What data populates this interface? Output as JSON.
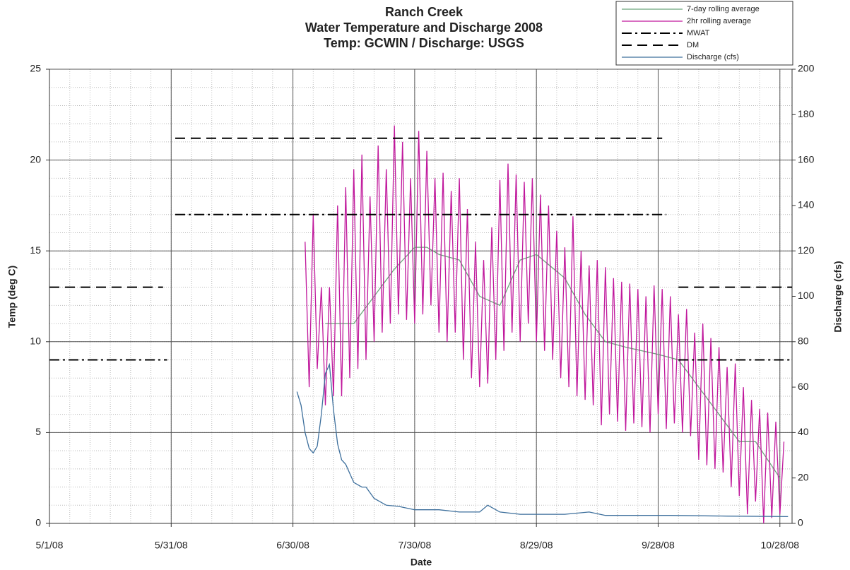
{
  "chart_data": {
    "type": "line",
    "title": [
      "Ranch Creek",
      "Water Temperature and Discharge 2008",
      "Temp: GCWIN / Discharge: USGS"
    ],
    "x_label": "Date",
    "y_label": "Temp (deg C)",
    "y2_label": "Discharge (cfs)",
    "xlim": [
      "5/1/08",
      "10/31/08"
    ],
    "xticks": [
      "5/1/08",
      "5/31/08",
      "6/30/08",
      "7/30/08",
      "8/29/08",
      "9/28/08",
      "10/28/08"
    ],
    "ylim": [
      0,
      25
    ],
    "yticks": [
      0,
      5,
      10,
      15,
      20,
      25
    ],
    "y2lim": [
      0,
      200
    ],
    "y2ticks": [
      0,
      20,
      40,
      60,
      80,
      100,
      120,
      140,
      160,
      180,
      200
    ],
    "grid": true,
    "legend": "top-right",
    "series": [
      {
        "name": "7-day rolling average",
        "color": "#6aa57a",
        "dash": "solid",
        "x": [
          "7/8/08",
          "7/15/08",
          "7/20/08",
          "7/25/08",
          "7/30/08",
          "8/2/08",
          "8/5/08",
          "8/10/08",
          "8/15/08",
          "8/20/08",
          "8/25/08",
          "8/29/08",
          "9/5/08",
          "9/10/08",
          "9/15/08",
          "9/20/08",
          "9/28/08",
          "10/3/08",
          "10/8/08",
          "10/13/08",
          "10/18/08",
          "10/22/08",
          "10/28/08"
        ],
        "values": [
          11,
          11,
          12.5,
          14,
          15.2,
          15.2,
          14.8,
          14.5,
          12.5,
          12,
          14.5,
          14.8,
          13.5,
          11.5,
          10,
          9.7,
          9.3,
          9,
          7.5,
          6,
          4.5,
          4.5,
          2.5
        ]
      },
      {
        "name": "2hr rolling average",
        "color": "#c0189c",
        "dash": "solid",
        "x": [
          "7/3/08",
          "7/4/08",
          "7/5/08",
          "7/6/08",
          "7/7/08",
          "7/8/08",
          "7/9/08",
          "7/10/08",
          "7/11/08",
          "7/12/08",
          "7/13/08",
          "7/14/08",
          "7/15/08",
          "7/16/08",
          "7/17/08",
          "7/18/08",
          "7/19/08",
          "7/20/08",
          "7/21/08",
          "7/22/08",
          "7/23/08",
          "7/24/08",
          "7/25/08",
          "7/26/08",
          "7/27/08",
          "7/28/08",
          "7/29/08",
          "7/30/08",
          "7/31/08",
          "8/1/08",
          "8/2/08",
          "8/3/08",
          "8/4/08",
          "8/5/08",
          "8/6/08",
          "8/7/08",
          "8/8/08",
          "8/9/08",
          "8/10/08",
          "8/11/08",
          "8/12/08",
          "8/13/08",
          "8/14/08",
          "8/15/08",
          "8/16/08",
          "8/17/08",
          "8/18/08",
          "8/19/08",
          "8/20/08",
          "8/21/08",
          "8/22/08",
          "8/23/08",
          "8/24/08",
          "8/25/08",
          "8/26/08",
          "8/27/08",
          "8/28/08",
          "8/29/08",
          "8/30/08",
          "8/31/08",
          "9/1/08",
          "9/2/08",
          "9/3/08",
          "9/4/08",
          "9/5/08",
          "9/6/08",
          "9/7/08",
          "9/8/08",
          "9/9/08",
          "9/10/08",
          "9/11/08",
          "9/12/08",
          "9/13/08",
          "9/14/08",
          "9/15/08",
          "9/16/08",
          "9/17/08",
          "9/18/08",
          "9/19/08",
          "9/20/08",
          "9/21/08",
          "9/22/08",
          "9/23/08",
          "9/24/08",
          "9/25/08",
          "9/26/08",
          "9/27/08",
          "9/28/08",
          "9/29/08",
          "9/30/08",
          "10/1/08",
          "10/2/08",
          "10/3/08",
          "10/4/08",
          "10/5/08",
          "10/6/08",
          "10/7/08",
          "10/8/08",
          "10/9/08",
          "10/10/08",
          "10/11/08",
          "10/12/08",
          "10/13/08",
          "10/14/08",
          "10/15/08",
          "10/16/08",
          "10/17/08",
          "10/18/08",
          "10/19/08",
          "10/20/08",
          "10/21/08",
          "10/22/08",
          "10/23/08",
          "10/24/08",
          "10/25/08",
          "10/26/08",
          "10/27/08",
          "10/28/08",
          "10/29/08"
        ],
        "values": [
          15.5,
          7.5,
          17,
          8.5,
          13,
          6.5,
          13,
          7,
          17.5,
          7,
          18.5,
          8,
          19.5,
          8.5,
          20.3,
          9,
          18,
          10,
          20.8,
          10.5,
          19.5,
          11,
          21.9,
          11.5,
          21,
          11.2,
          19,
          11,
          21.6,
          11.5,
          20.5,
          12,
          19,
          10.5,
          19.3,
          10,
          18.3,
          10.5,
          19,
          9,
          17.3,
          8,
          15.5,
          7.5,
          14.5,
          7.7,
          16.3,
          9,
          18.9,
          9.5,
          19.8,
          10.5,
          19.2,
          10,
          18.8,
          11,
          19,
          10,
          18.1,
          9.5,
          17.5,
          9,
          16.1,
          8,
          15.2,
          7.5,
          16.9,
          7,
          15,
          6.8,
          14.2,
          6.5,
          14.5,
          5.4,
          14.1,
          6,
          13.5,
          5.6,
          13.3,
          5.1,
          13.2,
          5.5,
          12.9,
          5.3,
          12.5,
          5,
          13.1,
          6,
          12.9,
          5.2,
          12.5,
          5.5,
          11.5,
          5,
          11.8,
          4.8,
          10.5,
          3.5,
          11,
          3.2,
          10.2,
          3,
          9.7,
          2.8,
          8.6,
          2,
          8.8,
          1.5,
          7.5,
          0.5,
          6.8,
          1.2,
          6.3,
          0,
          6.1,
          0.3,
          5.6,
          0.5,
          4.5
        ]
      },
      {
        "name": "MWAT",
        "color": "#000000",
        "dash": "dashdot",
        "x": [
          "5/1/08",
          "5/30/08",
          "5/31/08",
          "6/1/08",
          "9/30/08",
          "10/1/08",
          "10/3/08",
          "10/31/08"
        ],
        "values": [
          9,
          9,
          null,
          17,
          17,
          null,
          9,
          9
        ]
      },
      {
        "name": "DM",
        "color": "#000000",
        "dash": "dashed",
        "x": [
          "5/1/08",
          "5/29/08",
          "5/31/08",
          "6/1/08",
          "9/29/08",
          "10/1/08",
          "10/3/08",
          "10/31/08"
        ],
        "values": [
          13,
          13,
          null,
          21.2,
          21.2,
          null,
          13,
          13
        ]
      },
      {
        "name": "Discharge (cfs)",
        "color": "#3d6f9c",
        "dash": "solid",
        "axis": "y2",
        "x": [
          "7/1/08",
          "7/2/08",
          "7/3/08",
          "7/4/08",
          "7/5/08",
          "7/6/08",
          "7/7/08",
          "7/8/08",
          "7/9/08",
          "7/10/08",
          "7/11/08",
          "7/12/08",
          "7/13/08",
          "7/15/08",
          "7/17/08",
          "7/18/08",
          "7/20/08",
          "7/23/08",
          "7/26/08",
          "7/30/08",
          "8/5/08",
          "8/10/08",
          "8/15/08",
          "8/17/08",
          "8/20/08",
          "8/25/08",
          "9/5/08",
          "9/11/08",
          "9/15/08",
          "10/1/08",
          "10/15/08",
          "10/30/08"
        ],
        "values": [
          58,
          52,
          40,
          33,
          31,
          34,
          48,
          66,
          70,
          50,
          35,
          28,
          26,
          18,
          16,
          16,
          11,
          8,
          7.5,
          6,
          6,
          5,
          5,
          8,
          5,
          4,
          4,
          5,
          3.5,
          3.5,
          3.2,
          3
        ]
      }
    ]
  }
}
